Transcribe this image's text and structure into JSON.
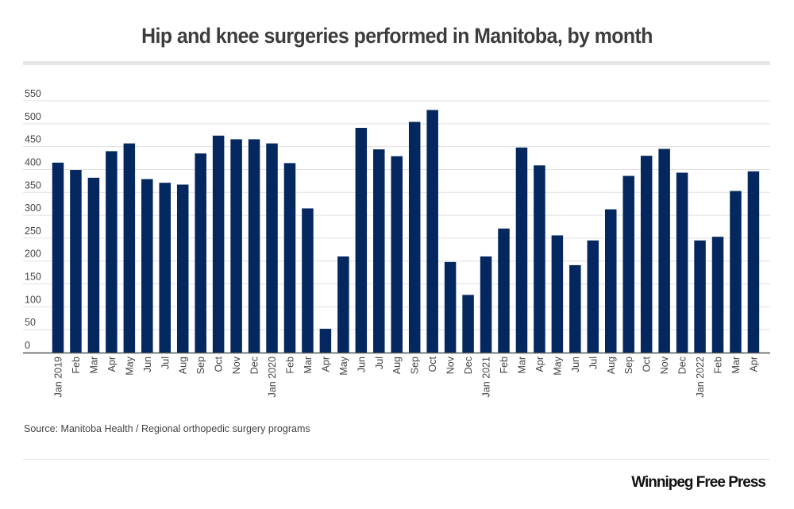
{
  "header": {
    "title": "Hip and knee surgeries performed in Manitoba, by month"
  },
  "footer": {
    "source": "Source: Manitoba Health / Regional orthopedic surgery programs",
    "brand": "Winnipeg Free Press"
  },
  "colors": {
    "bar": "#03275e",
    "grid": "#e0e0e0",
    "axis": "#555555",
    "tick_text": "#444444"
  },
  "chart_data": {
    "type": "bar",
    "title": "Hip and knee surgeries performed in Manitoba, by month",
    "xlabel": "",
    "ylabel": "",
    "ylim": [
      0,
      550
    ],
    "yticks": [
      0,
      50,
      100,
      150,
      200,
      250,
      300,
      350,
      400,
      450,
      500,
      550
    ],
    "grid": true,
    "legend": "none",
    "categories": [
      "Jan 2019",
      "Feb",
      "Mar",
      "Apr",
      "May",
      "Jun",
      "Jul",
      "Aug",
      "Sep",
      "Oct",
      "Nov",
      "Dec",
      "Jan 2020",
      "Feb",
      "Mar",
      "Apr",
      "May",
      "Jun",
      "Jul",
      "Aug",
      "Sep",
      "Oct",
      "Nov",
      "Dec",
      "Jan 2021",
      "Feb",
      "Mar",
      "Apr",
      "May",
      "Jun",
      "Jul",
      "Aug",
      "Sep",
      "Oct",
      "Nov",
      "Dec",
      "Jan 2022",
      "Feb",
      "Mar",
      "Apr"
    ],
    "values": [
      415,
      399,
      382,
      440,
      457,
      379,
      371,
      367,
      435,
      474,
      466,
      466,
      457,
      414,
      315,
      52,
      210,
      491,
      444,
      429,
      504,
      530,
      198,
      126,
      210,
      271,
      448,
      409,
      256,
      191,
      245,
      313,
      386,
      430,
      445,
      393,
      245,
      253,
      353,
      396
    ]
  }
}
